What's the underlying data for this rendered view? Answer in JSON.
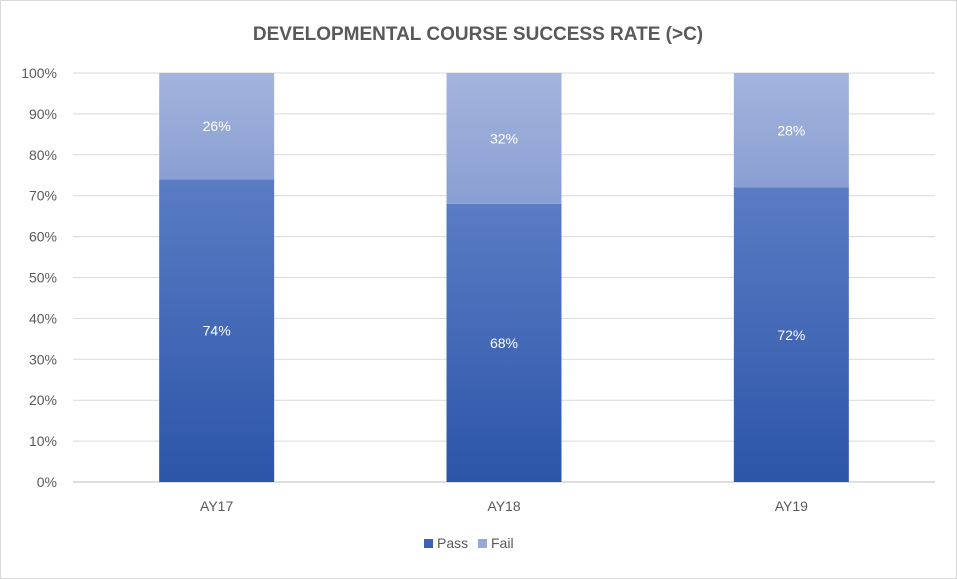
{
  "chart_data": {
    "type": "bar",
    "stacked": true,
    "title": "DEVELOPMENTAL COURSE SUCCESS RATE (>C)",
    "categories": [
      "AY17",
      "AY18",
      "AY19"
    ],
    "series": [
      {
        "name": "Pass",
        "values": [
          74,
          68,
          72
        ],
        "labels": [
          "74%",
          "68%",
          "72%"
        ],
        "color": "#3a62b5"
      },
      {
        "name": "Fail",
        "values": [
          26,
          32,
          28
        ],
        "labels": [
          "26%",
          "32%",
          "28%"
        ],
        "color": "#95a8d8"
      }
    ],
    "ylim": [
      0,
      100
    ],
    "yticks": [
      0,
      10,
      20,
      30,
      40,
      50,
      60,
      70,
      80,
      90,
      100
    ],
    "ytick_labels": [
      "0%",
      "10%",
      "20%",
      "30%",
      "40%",
      "50%",
      "60%",
      "70%",
      "80%",
      "90%",
      "100%"
    ],
    "grid": true,
    "legend": "bottom"
  }
}
